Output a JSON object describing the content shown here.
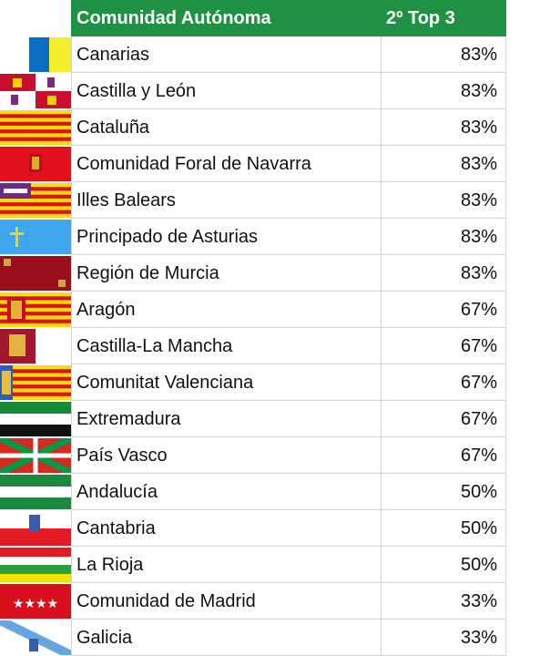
{
  "table": {
    "header": [
      "Comunidad Autónoma",
      "2º Top 3"
    ],
    "rows": [
      [
        "Canarias",
        "83%"
      ],
      [
        "Castilla y León",
        "83%"
      ],
      [
        "Cataluña",
        "83%"
      ],
      [
        "Comunidad Foral de Navarra",
        "83%"
      ],
      [
        "Illes Balears",
        "83%"
      ],
      [
        "Principado de Asturias",
        "83%"
      ],
      [
        "Región de Murcia",
        "83%"
      ],
      [
        "Aragón",
        "67%"
      ],
      [
        "Castilla-La Mancha",
        "67%"
      ],
      [
        "Comunitat Valenciana",
        "67%"
      ],
      [
        "Extremadura",
        "67%"
      ],
      [
        "País Vasco",
        "67%"
      ],
      [
        "Andalucía",
        "50%"
      ],
      [
        "Cantabria",
        "50%"
      ],
      [
        "La Rioja",
        "50%"
      ],
      [
        "Comunidad de Madrid",
        "33%"
      ],
      [
        "Galicia",
        "33%"
      ]
    ]
  }
}
